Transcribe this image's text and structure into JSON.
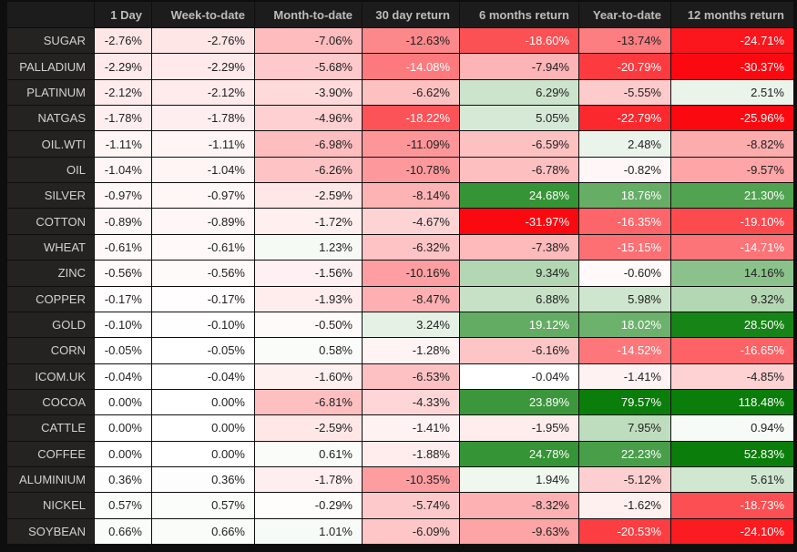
{
  "chart_data": {
    "type": "heatmap",
    "title": "",
    "value_format": "0.00%",
    "columns": [
      "1 Day",
      "Week-to-date",
      "Month-to-date",
      "30 day return",
      "6 months return",
      "Year-to-date",
      "12 months return"
    ],
    "rows": [
      {
        "label": "SUGAR",
        "values": [
          -2.76,
          -2.76,
          -7.06,
          -12.63,
          -18.6,
          -13.74,
          -24.71
        ]
      },
      {
        "label": "PALLADIUM",
        "values": [
          -2.29,
          -2.29,
          -5.68,
          -14.08,
          -7.94,
          -20.79,
          -30.37
        ]
      },
      {
        "label": "PLATINUM",
        "values": [
          -2.12,
          -2.12,
          -3.9,
          -6.62,
          6.29,
          -5.55,
          2.51
        ]
      },
      {
        "label": "NATGAS",
        "values": [
          -1.78,
          -1.78,
          -4.96,
          -18.22,
          5.05,
          -22.79,
          -25.96
        ]
      },
      {
        "label": "OIL.WTI",
        "values": [
          -1.11,
          -1.11,
          -6.98,
          -11.09,
          -6.59,
          2.48,
          -8.82
        ]
      },
      {
        "label": "OIL",
        "values": [
          -1.04,
          -1.04,
          -6.26,
          -10.78,
          -6.78,
          -0.82,
          -9.57
        ]
      },
      {
        "label": "SILVER",
        "values": [
          -0.97,
          -0.97,
          -2.59,
          -8.14,
          24.68,
          18.76,
          21.3
        ]
      },
      {
        "label": "COTTON",
        "values": [
          -0.89,
          -0.89,
          -1.72,
          -4.67,
          -31.97,
          -16.35,
          -19.1
        ]
      },
      {
        "label": "WHEAT",
        "values": [
          -0.61,
          -0.61,
          1.23,
          -6.32,
          -7.38,
          -15.15,
          -14.71
        ]
      },
      {
        "label": "ZINC",
        "values": [
          -0.56,
          -0.56,
          -1.56,
          -10.16,
          9.34,
          -0.6,
          14.16
        ]
      },
      {
        "label": "COPPER",
        "values": [
          -0.17,
          -0.17,
          -1.93,
          -8.47,
          6.88,
          5.98,
          9.32
        ]
      },
      {
        "label": "GOLD",
        "values": [
          -0.1,
          -0.1,
          -0.5,
          3.24,
          19.12,
          18.02,
          28.5
        ]
      },
      {
        "label": "CORN",
        "values": [
          -0.05,
          -0.05,
          0.58,
          -1.28,
          -6.16,
          -14.52,
          -16.65
        ]
      },
      {
        "label": "ICOM.UK",
        "values": [
          -0.04,
          -0.04,
          -1.6,
          -6.53,
          -0.04,
          -1.41,
          -4.85
        ]
      },
      {
        "label": "COCOA",
        "values": [
          0.0,
          0.0,
          -6.81,
          -4.33,
          23.89,
          79.57,
          118.48
        ]
      },
      {
        "label": "CATTLE",
        "values": [
          0.0,
          0.0,
          -2.59,
          -1.41,
          -1.95,
          7.95,
          0.94
        ]
      },
      {
        "label": "COFFEE",
        "values": [
          0.0,
          0.0,
          0.61,
          -1.88,
          24.78,
          22.23,
          52.83
        ]
      },
      {
        "label": "ALUMINIUM",
        "values": [
          0.36,
          0.36,
          -1.78,
          -10.35,
          1.94,
          -5.12,
          5.61
        ]
      },
      {
        "label": "NICKEL",
        "values": [
          0.57,
          0.57,
          -0.29,
          -5.74,
          -8.32,
          -1.62,
          -18.73
        ]
      },
      {
        "label": "SOYBEAN",
        "values": [
          0.66,
          0.66,
          1.01,
          -6.09,
          -9.63,
          -20.53,
          -24.1
        ]
      }
    ],
    "layout_hints": {
      "grid": true,
      "legend": "none",
      "color_scale": {
        "negative_end": "#fa0a10",
        "neutral": "#ffffff",
        "positive_end": "#0a7d0a",
        "negative_saturation_at": -26,
        "positive_saturation_at": 30,
        "white_text_below": -13.9,
        "white_text_above": 16
      }
    }
  },
  "theme": {
    "page_bg": "#0e0e0e",
    "header_bg": "#1d1c1c",
    "header_text": "#bebcba",
    "row_label_bg": "#242322",
    "row_label_text": "#d4d2d0",
    "cell_text_dark": "#212121",
    "cell_text_light": "#ffffff"
  }
}
